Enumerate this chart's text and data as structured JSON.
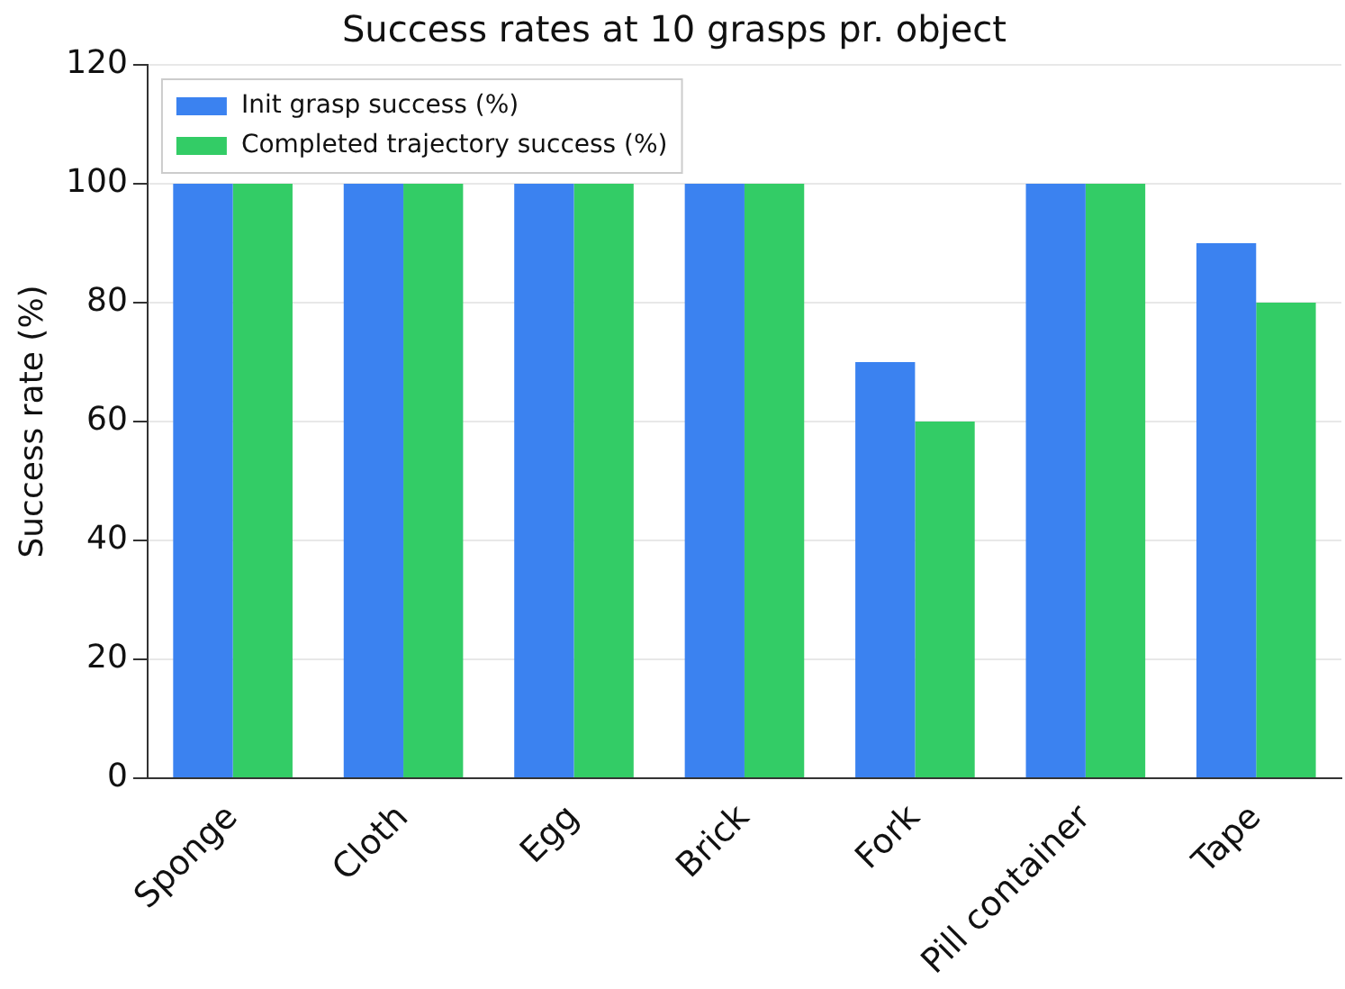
{
  "chart_data": {
    "type": "bar",
    "title": "Success rates at 10 grasps pr. object",
    "ylabel": "Success rate (%)",
    "categories": [
      "Sponge",
      "Cloth",
      "Egg",
      "Brick",
      "Fork",
      "Pill container",
      "Tape"
    ],
    "series": [
      {
        "name": "Init grasp success (%)",
        "color": "#3b82f0",
        "values": [
          100,
          100,
          100,
          100,
          70,
          100,
          90
        ]
      },
      {
        "name": "Completed trajectory success (%)",
        "color": "#33cc66",
        "values": [
          100,
          100,
          100,
          100,
          60,
          100,
          80
        ]
      }
    ],
    "ylim": [
      0,
      120
    ],
    "yticks": [
      0,
      20,
      40,
      60,
      80,
      100,
      120
    ],
    "grid": "y",
    "legend": "top left"
  }
}
